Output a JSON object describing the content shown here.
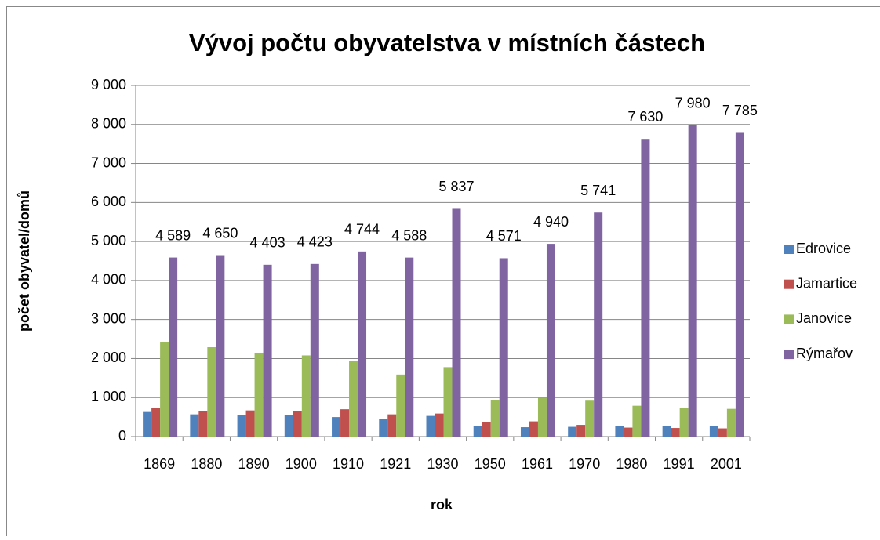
{
  "chart_data": {
    "type": "bar",
    "title": "Vývoj počtu obyvatelstva v místních částech",
    "x_label": "rok",
    "y_label": "počet obyvatel/domů",
    "categories": [
      "1869",
      "1880",
      "1890",
      "1900",
      "1910",
      "1921",
      "1930",
      "1950",
      "1961",
      "1970",
      "1980",
      "1991",
      "2001"
    ],
    "series": [
      {
        "name": "Edrovice",
        "color": "#4f81bd",
        "values": [
          630,
          570,
          560,
          560,
          500,
          460,
          530,
          270,
          240,
          250,
          280,
          270,
          280
        ]
      },
      {
        "name": "Jamartice",
        "color": "#c0504d",
        "values": [
          730,
          650,
          670,
          650,
          700,
          570,
          590,
          380,
          390,
          300,
          230,
          220,
          210
        ]
      },
      {
        "name": "Janovice",
        "color": "#9bbb59",
        "values": [
          2420,
          2290,
          2150,
          2080,
          1930,
          1590,
          1780,
          940,
          990,
          920,
          790,
          730,
          710
        ]
      },
      {
        "name": "Rýmařov",
        "color": "#8064a2",
        "values": [
          4589,
          4650,
          4403,
          4423,
          4744,
          4588,
          5837,
          4571,
          4940,
          5741,
          7630,
          7980,
          7785
        ],
        "value_labels": [
          "4 589",
          "4 650",
          "4 403",
          "4 423",
          "4 744",
          "4 588",
          "5 837",
          "4 571",
          "4 940",
          "5 741",
          "7 630",
          "7 980",
          "7 785"
        ]
      }
    ],
    "ylim": [
      0,
      9000
    ],
    "yticks": [
      0,
      {
        "value": 1000,
        "label": "1 000"
      },
      {
        "value": 2000,
        "label": "2 000"
      },
      {
        "value": 3000,
        "label": "3 000"
      },
      {
        "value": 4000,
        "label": "4 000"
      },
      {
        "value": 5000,
        "label": "5 000"
      },
      {
        "value": 6000,
        "label": "6 000"
      },
      {
        "value": 7000,
        "label": "7 000"
      },
      {
        "value": 8000,
        "label": "8 000"
      },
      {
        "value": 9000,
        "label": "9 000"
      }
    ],
    "grid": true,
    "legend": "right"
  }
}
